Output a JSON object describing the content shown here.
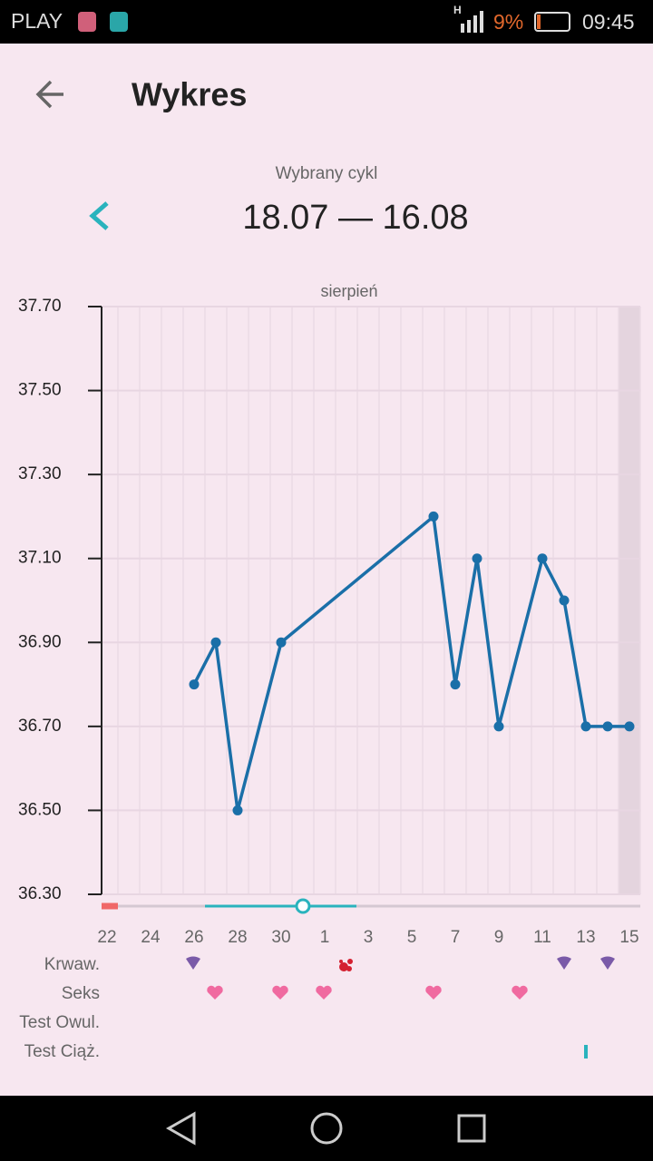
{
  "status_bar": {
    "carrier": "PLAY",
    "network": "H",
    "battery": "9%",
    "time": "09:45"
  },
  "header": {
    "title": "Wykres"
  },
  "cycle": {
    "label": "Wybrany cykl",
    "range": "18.07 — 16.08"
  },
  "chart_data": {
    "type": "line",
    "annotation": "sierpień",
    "color": "#1a6fa8",
    "grid": true,
    "categories": [
      "22",
      null,
      "24",
      null,
      "26",
      null,
      "28",
      null,
      "30",
      null,
      "1",
      null,
      "3",
      null,
      "5",
      null,
      "7",
      null,
      "9",
      null,
      "11",
      null,
      "13",
      null,
      "15"
    ],
    "values": [
      null,
      null,
      null,
      null,
      36.8,
      36.9,
      36.5,
      null,
      36.9,
      null,
      null,
      null,
      null,
      null,
      null,
      37.2,
      36.8,
      37.1,
      36.7,
      null,
      37.1,
      37.0,
      36.7,
      36.7,
      36.7
    ],
    "ylim": [
      36.3,
      37.7
    ],
    "yticks": [
      {
        "value": 36.3,
        "label": "36.30"
      },
      {
        "value": 36.5,
        "label": "36.50"
      },
      {
        "value": 36.7,
        "label": "36.70"
      },
      {
        "value": 36.9,
        "label": "36.90"
      },
      {
        "value": 37.1,
        "label": "37.10"
      },
      {
        "value": 37.3,
        "label": "37.30"
      },
      {
        "value": 37.5,
        "label": "37.50"
      },
      {
        "value": 37.7,
        "label": "37.70"
      }
    ]
  },
  "tracking_rows": [
    "Krwaw.",
    "Seks",
    "Test Owul.",
    "Test Ciąż."
  ]
}
